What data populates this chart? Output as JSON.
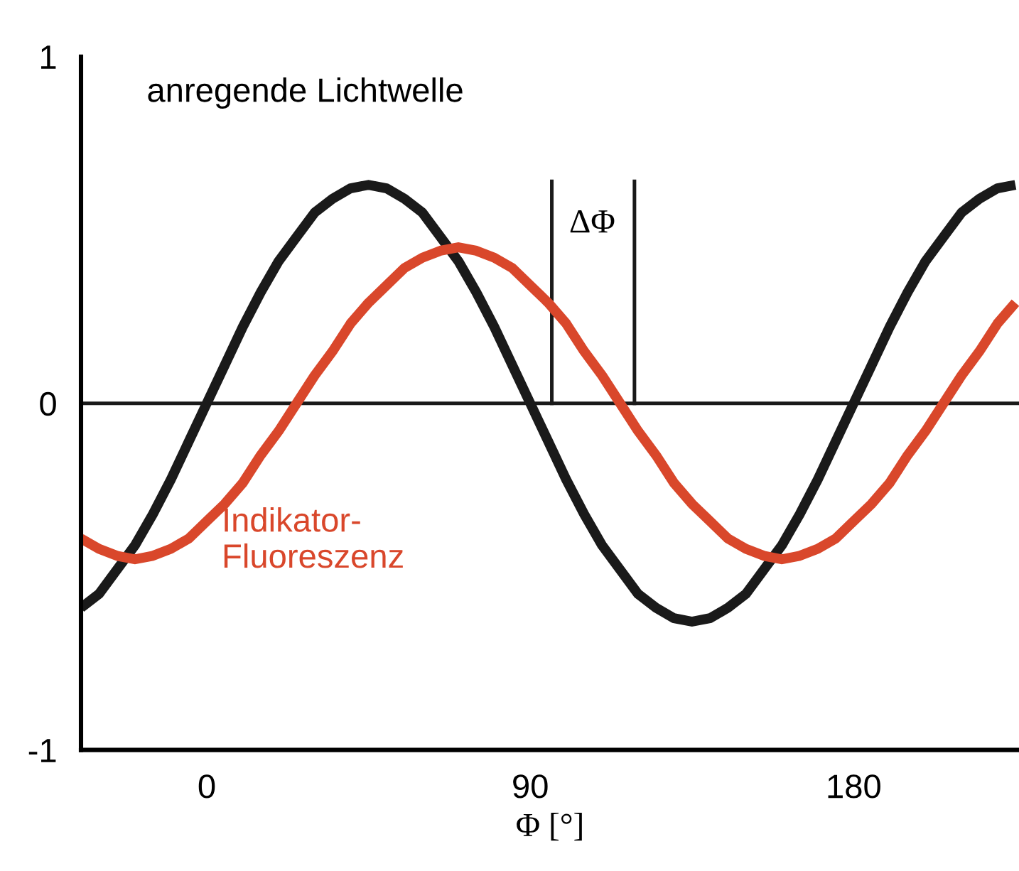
{
  "chart_data": {
    "type": "line",
    "xlabel": "Φ [°]",
    "x": [
      -35,
      -30,
      -25,
      -20,
      -15,
      -10,
      -5,
      0,
      5,
      10,
      15,
      20,
      25,
      30,
      35,
      40,
      45,
      50,
      55,
      60,
      65,
      70,
      75,
      80,
      85,
      90,
      95,
      100,
      105,
      110,
      115,
      120,
      125,
      130,
      135,
      140,
      145,
      150,
      155,
      160,
      165,
      170,
      175,
      180,
      185,
      190,
      195,
      200,
      205,
      210,
      215,
      220,
      225
    ],
    "series": [
      {
        "name": "anregende Lichtwelle",
        "color": "#1a1a1a",
        "values": [
          -0.59,
          -0.55,
          -0.48,
          -0.41,
          -0.32,
          -0.22,
          -0.11,
          0,
          0.11,
          0.22,
          0.32,
          0.41,
          0.48,
          0.55,
          0.59,
          0.62,
          0.63,
          0.62,
          0.59,
          0.55,
          0.48,
          0.41,
          0.32,
          0.22,
          0.11,
          0,
          -0.11,
          -0.22,
          -0.32,
          -0.41,
          -0.48,
          -0.55,
          -0.59,
          -0.62,
          -0.63,
          -0.62,
          -0.59,
          -0.55,
          -0.48,
          -0.41,
          -0.32,
          -0.22,
          -0.11,
          0,
          0.11,
          0.22,
          0.32,
          0.41,
          0.48,
          0.55,
          0.59,
          0.62,
          0.63
        ]
      },
      {
        "name": "Indikator-\nFluoreszenz",
        "color": "#d9472b",
        "values": [
          -0.39,
          -0.42,
          -0.44,
          -0.45,
          -0.44,
          -0.42,
          -0.39,
          -0.34,
          -0.29,
          -0.23,
          -0.15,
          -0.08,
          0,
          0.08,
          0.15,
          0.23,
          0.29,
          0.34,
          0.39,
          0.42,
          0.44,
          0.45,
          0.44,
          0.42,
          0.39,
          0.34,
          0.29,
          0.23,
          0.15,
          0.08,
          0,
          -0.08,
          -0.15,
          -0.23,
          -0.29,
          -0.34,
          -0.39,
          -0.42,
          -0.44,
          -0.45,
          -0.44,
          -0.42,
          -0.39,
          -0.34,
          -0.29,
          -0.23,
          -0.15,
          -0.08,
          0,
          0.08,
          0.15,
          0.23,
          0.29
        ]
      }
    ],
    "annotations": [
      "ΔΦ"
    ],
    "ref_lines": [
      {
        "axis": "y",
        "value": 0,
        "color": "#1a1a1a"
      },
      {
        "axis": "x",
        "value": 96,
        "color": "#1a1a1a"
      },
      {
        "axis": "x",
        "value": 119,
        "color": "#1a1a1a"
      }
    ],
    "xlim": [
      -35,
      226
    ],
    "ylim": [
      -1,
      1
    ],
    "xticks": [
      0,
      90,
      180
    ],
    "yticks": [
      -1,
      0,
      1
    ],
    "grid": false,
    "legend": false
  }
}
